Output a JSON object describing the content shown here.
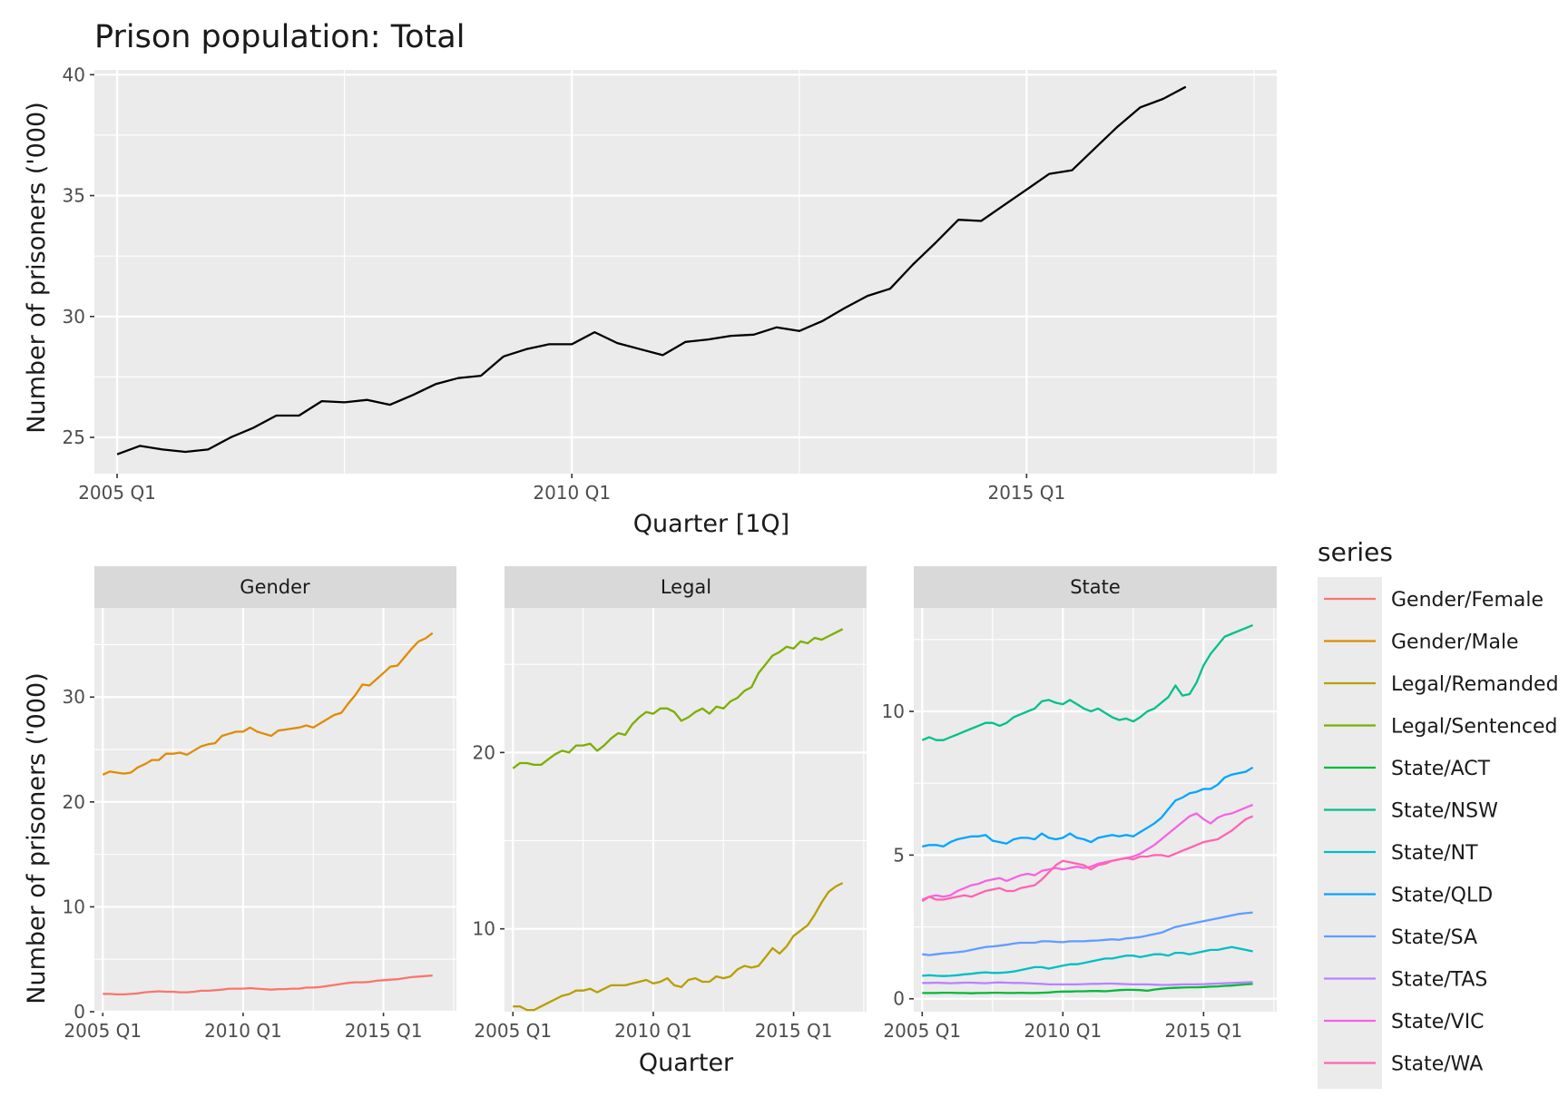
{
  "chart_data": [
    {
      "type": "line",
      "title": "Prison population: Total",
      "xlabel": "Quarter [1Q]",
      "ylabel": "Number of prisoners ('000)",
      "xlim": [
        2004.75,
        2017.75
      ],
      "ylim": [
        23.5,
        40.2
      ],
      "x_ticks": [
        {
          "value": 2005,
          "label": "2005 Q1"
        },
        {
          "value": 2010,
          "label": "2010 Q1"
        },
        {
          "value": 2015,
          "label": "2015 Q1"
        }
      ],
      "y_ticks": [
        {
          "value": 25,
          "label": "25"
        },
        {
          "value": 30,
          "label": "30"
        },
        {
          "value": 35,
          "label": "35"
        },
        {
          "value": 40,
          "label": "40"
        }
      ],
      "x_start": 2005,
      "x_step": 0.25,
      "series": [
        {
          "color": "#000000",
          "values": [
            24.3,
            24.65,
            24.5,
            24.4,
            24.5,
            25.0,
            25.4,
            25.9,
            25.9,
            26.5,
            26.45,
            26.55,
            26.35,
            26.75,
            27.2,
            27.45,
            27.55,
            28.35,
            28.65,
            28.85,
            28.85,
            29.35,
            28.9,
            28.65,
            28.4,
            28.95,
            29.05,
            29.2,
            29.25,
            29.55,
            29.4,
            29.8,
            30.35,
            30.85,
            31.15,
            32.15,
            33.05,
            34.0,
            33.95,
            34.6,
            35.25,
            35.9,
            36.05,
            36.95,
            37.85,
            38.65,
            39.0,
            39.5
          ]
        }
      ]
    },
    {
      "type": "line",
      "facet": "Gender",
      "ylabel": "Number of prisoners ('000)",
      "xlim": [
        2004.7,
        2017.6
      ],
      "ylim": [
        0,
        38.5
      ],
      "x_ticks": [
        {
          "value": 2005,
          "label": "2005 Q1"
        },
        {
          "value": 2010,
          "label": "2010 Q1"
        },
        {
          "value": 2015,
          "label": "2015 Q1"
        }
      ],
      "y_ticks": [
        {
          "value": 0,
          "label": "0"
        },
        {
          "value": 10,
          "label": "10"
        },
        {
          "value": 20,
          "label": "20"
        },
        {
          "value": 30,
          "label": "30"
        }
      ],
      "x_start": 2005,
      "x_step": 0.25,
      "series": [
        {
          "name": "Gender/Female",
          "color": "#F8766D",
          "values": [
            1.7,
            1.7,
            1.65,
            1.65,
            1.7,
            1.75,
            1.85,
            1.9,
            1.95,
            1.9,
            1.9,
            1.85,
            1.85,
            1.9,
            2.0,
            2.0,
            2.05,
            2.1,
            2.2,
            2.2,
            2.2,
            2.25,
            2.2,
            2.15,
            2.1,
            2.15,
            2.15,
            2.2,
            2.2,
            2.3,
            2.3,
            2.35,
            2.45,
            2.55,
            2.65,
            2.75,
            2.8,
            2.8,
            2.85,
            2.95,
            3.0,
            3.05,
            3.1,
            3.2,
            3.3,
            3.35,
            3.4,
            3.45
          ]
        },
        {
          "name": "Gender/Male",
          "color": "#DE8C00",
          "values": [
            22.6,
            22.9,
            22.8,
            22.7,
            22.8,
            23.3,
            23.6,
            24.0,
            24.0,
            24.6,
            24.6,
            24.7,
            24.5,
            24.9,
            25.3,
            25.5,
            25.6,
            26.3,
            26.5,
            26.7,
            26.7,
            27.1,
            26.7,
            26.5,
            26.3,
            26.8,
            26.9,
            27.0,
            27.1,
            27.3,
            27.1,
            27.5,
            27.9,
            28.3,
            28.5,
            29.4,
            30.2,
            31.2,
            31.1,
            31.7,
            32.3,
            32.9,
            33.0,
            33.8,
            34.6,
            35.3,
            35.6,
            36.1
          ]
        }
      ]
    },
    {
      "type": "line",
      "facet": "Legal",
      "xlabel": "Quarter",
      "xlim": [
        2004.7,
        2017.6
      ],
      "ylim": [
        5.3,
        28.2
      ],
      "x_ticks": [
        {
          "value": 2005,
          "label": "2005 Q1"
        },
        {
          "value": 2010,
          "label": "2010 Q1"
        },
        {
          "value": 2015,
          "label": "2015 Q1"
        }
      ],
      "y_ticks": [
        {
          "value": 10,
          "label": "10"
        },
        {
          "value": 20,
          "label": "20"
        }
      ],
      "x_start": 2005,
      "x_step": 0.25,
      "series": [
        {
          "name": "Legal/Remanded",
          "color": "#B79F00",
          "values": [
            5.6,
            5.6,
            5.4,
            5.4,
            5.6,
            5.8,
            6.0,
            6.2,
            6.3,
            6.5,
            6.5,
            6.6,
            6.4,
            6.6,
            6.8,
            6.8,
            6.8,
            6.9,
            7.0,
            7.1,
            6.9,
            7.0,
            7.2,
            6.8,
            6.7,
            7.1,
            7.2,
            7.0,
            7.0,
            7.3,
            7.2,
            7.3,
            7.7,
            7.9,
            7.8,
            7.9,
            8.4,
            8.9,
            8.6,
            9.0,
            9.6,
            9.9,
            10.2,
            10.8,
            11.5,
            12.1,
            12.4,
            12.6
          ]
        },
        {
          "name": "Legal/Sentenced",
          "color": "#7CAE00",
          "values": [
            19.1,
            19.4,
            19.4,
            19.3,
            19.3,
            19.6,
            19.9,
            20.1,
            20.0,
            20.4,
            20.4,
            20.5,
            20.1,
            20.4,
            20.8,
            21.1,
            21.0,
            21.6,
            22.0,
            22.3,
            22.2,
            22.5,
            22.5,
            22.3,
            21.8,
            22.0,
            22.3,
            22.5,
            22.2,
            22.6,
            22.5,
            22.9,
            23.1,
            23.5,
            23.7,
            24.5,
            25.0,
            25.5,
            25.7,
            26.0,
            25.9,
            26.3,
            26.2,
            26.5,
            26.4,
            26.6,
            26.8,
            27.0
          ]
        }
      ]
    },
    {
      "type": "line",
      "facet": "State",
      "xlim": [
        2004.7,
        2017.6
      ],
      "ylim": [
        -0.45,
        13.6
      ],
      "x_ticks": [
        {
          "value": 2005,
          "label": "2005 Q1"
        },
        {
          "value": 2010,
          "label": "2010 Q1"
        },
        {
          "value": 2015,
          "label": "2015 Q1"
        }
      ],
      "y_ticks": [
        {
          "value": 0,
          "label": "0"
        },
        {
          "value": 5,
          "label": "5"
        },
        {
          "value": 10,
          "label": "10"
        }
      ],
      "x_start": 2005,
      "x_step": 0.25,
      "series": [
        {
          "name": "State/ACT",
          "color": "#00BA38",
          "values": [
            0.2,
            0.2,
            0.2,
            0.21,
            0.21,
            0.2,
            0.2,
            0.19,
            0.2,
            0.2,
            0.21,
            0.21,
            0.2,
            0.2,
            0.21,
            0.2,
            0.2,
            0.21,
            0.22,
            0.24,
            0.25,
            0.25,
            0.26,
            0.26,
            0.27,
            0.27,
            0.26,
            0.28,
            0.3,
            0.31,
            0.31,
            0.3,
            0.28,
            0.32,
            0.35,
            0.37,
            0.38,
            0.39,
            0.4,
            0.4,
            0.41,
            0.42,
            0.43,
            0.45,
            0.46,
            0.48,
            0.5,
            0.52
          ]
        },
        {
          "name": "State/NSW",
          "color": "#00C08B",
          "values": [
            9.0,
            9.1,
            9.0,
            9.0,
            9.1,
            9.2,
            9.3,
            9.4,
            9.5,
            9.6,
            9.6,
            9.5,
            9.6,
            9.8,
            9.9,
            10.0,
            10.1,
            10.35,
            10.4,
            10.3,
            10.25,
            10.4,
            10.25,
            10.1,
            10.0,
            10.1,
            9.95,
            9.8,
            9.7,
            9.75,
            9.65,
            9.8,
            10.0,
            10.1,
            10.3,
            10.5,
            10.9,
            10.55,
            10.6,
            11.0,
            11.6,
            12.0,
            12.3,
            12.6,
            12.7,
            12.8,
            12.9,
            13.0
          ]
        },
        {
          "name": "State/NT",
          "color": "#00BFC4",
          "values": [
            0.8,
            0.82,
            0.8,
            0.79,
            0.8,
            0.82,
            0.85,
            0.87,
            0.9,
            0.92,
            0.9,
            0.9,
            0.92,
            0.95,
            1.0,
            1.05,
            1.1,
            1.1,
            1.05,
            1.1,
            1.15,
            1.2,
            1.2,
            1.25,
            1.3,
            1.35,
            1.4,
            1.4,
            1.45,
            1.5,
            1.5,
            1.45,
            1.5,
            1.55,
            1.55,
            1.5,
            1.6,
            1.6,
            1.55,
            1.6,
            1.65,
            1.7,
            1.7,
            1.75,
            1.8,
            1.75,
            1.7,
            1.65
          ]
        },
        {
          "name": "State/QLD",
          "color": "#00A5FF",
          "values": [
            5.3,
            5.35,
            5.35,
            5.3,
            5.45,
            5.55,
            5.6,
            5.65,
            5.65,
            5.7,
            5.5,
            5.45,
            5.4,
            5.55,
            5.6,
            5.6,
            5.55,
            5.75,
            5.6,
            5.55,
            5.6,
            5.75,
            5.6,
            5.55,
            5.45,
            5.6,
            5.65,
            5.7,
            5.65,
            5.7,
            5.65,
            5.8,
            5.95,
            6.1,
            6.3,
            6.6,
            6.9,
            7.0,
            7.15,
            7.2,
            7.3,
            7.3,
            7.45,
            7.7,
            7.8,
            7.85,
            7.9,
            8.05
          ]
        },
        {
          "name": "State/SA",
          "color": "#619CFF",
          "values": [
            1.55,
            1.52,
            1.55,
            1.58,
            1.6,
            1.62,
            1.65,
            1.7,
            1.75,
            1.8,
            1.82,
            1.85,
            1.88,
            1.92,
            1.95,
            1.95,
            1.95,
            2.0,
            2.0,
            1.98,
            1.97,
            2.0,
            2.0,
            2.0,
            2.02,
            2.03,
            2.05,
            2.07,
            2.05,
            2.1,
            2.12,
            2.15,
            2.2,
            2.25,
            2.3,
            2.4,
            2.5,
            2.55,
            2.6,
            2.65,
            2.7,
            2.75,
            2.8,
            2.85,
            2.9,
            2.95,
            2.98,
            3.0
          ]
        },
        {
          "name": "State/TAS",
          "color": "#B983FF",
          "values": [
            0.55,
            0.55,
            0.56,
            0.55,
            0.54,
            0.55,
            0.56,
            0.56,
            0.55,
            0.54,
            0.56,
            0.57,
            0.56,
            0.55,
            0.55,
            0.54,
            0.53,
            0.52,
            0.5,
            0.5,
            0.5,
            0.5,
            0.5,
            0.51,
            0.52,
            0.52,
            0.53,
            0.53,
            0.52,
            0.51,
            0.5,
            0.5,
            0.5,
            0.49,
            0.48,
            0.48,
            0.49,
            0.5,
            0.5,
            0.5,
            0.51,
            0.52,
            0.53,
            0.54,
            0.55,
            0.56,
            0.57,
            0.58
          ]
        },
        {
          "name": "State/VIC",
          "color": "#F564E3",
          "values": [
            3.45,
            3.55,
            3.6,
            3.55,
            3.6,
            3.75,
            3.85,
            3.95,
            4.0,
            4.1,
            4.15,
            4.2,
            4.1,
            4.2,
            4.3,
            4.35,
            4.3,
            4.45,
            4.5,
            4.55,
            4.5,
            4.55,
            4.6,
            4.55,
            4.6,
            4.7,
            4.75,
            4.8,
            4.85,
            4.9,
            4.95,
            5.05,
            5.2,
            5.35,
            5.55,
            5.75,
            5.95,
            6.15,
            6.35,
            6.45,
            6.25,
            6.1,
            6.3,
            6.4,
            6.45,
            6.55,
            6.65,
            6.75
          ]
        },
        {
          "name": "State/WA",
          "color": "#FF64B0",
          "values": [
            3.4,
            3.55,
            3.45,
            3.45,
            3.5,
            3.55,
            3.6,
            3.55,
            3.65,
            3.75,
            3.8,
            3.85,
            3.75,
            3.75,
            3.85,
            3.9,
            3.95,
            4.15,
            4.4,
            4.65,
            4.8,
            4.75,
            4.7,
            4.65,
            4.5,
            4.65,
            4.7,
            4.8,
            4.85,
            4.9,
            4.85,
            4.95,
            4.95,
            5.0,
            5.0,
            4.95,
            5.05,
            5.15,
            5.25,
            5.35,
            5.45,
            5.5,
            5.55,
            5.7,
            5.85,
            6.05,
            6.25,
            6.35
          ]
        }
      ]
    }
  ],
  "legend": {
    "title": "series",
    "placement": "right",
    "items": [
      "Gender/Female",
      "Gender/Male",
      "Legal/Remanded",
      "Legal/Sentenced",
      "State/ACT",
      "State/NSW",
      "State/NT",
      "State/QLD",
      "State/SA",
      "State/TAS",
      "State/VIC",
      "State/WA"
    ],
    "colors": [
      "#F8766D",
      "#DE8C00",
      "#B79F00",
      "#7CAE00",
      "#00BA38",
      "#00C08B",
      "#00BFC4",
      "#00A5FF",
      "#619CFF",
      "#B983FF",
      "#F564E3",
      "#FF64B0"
    ]
  }
}
